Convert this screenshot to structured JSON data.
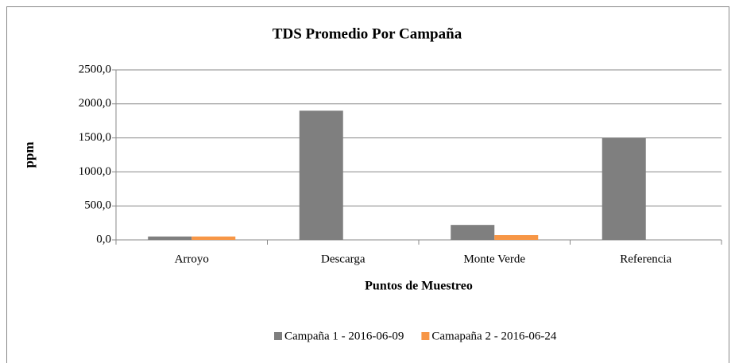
{
  "chart_data": {
    "type": "bar",
    "title": "TDS Promedio Por Campaña",
    "x_label": "Puntos de Muestreo",
    "y_label": "ppm",
    "categories": [
      "Arroyo",
      "Descarga",
      "Monte Verde",
      "Referencia"
    ],
    "series": [
      {
        "name": "Campaña 1 - 2016-06-09",
        "color": "#7f7f7f",
        "values": [
          50,
          1900,
          220,
          1500
        ]
      },
      {
        "name": "Camapaña 2 - 2016-06-24",
        "color": "#f79646",
        "values": [
          50,
          null,
          70,
          null
        ]
      }
    ],
    "ylim": [
      0,
      2500
    ],
    "yticks": [
      {
        "value": 0,
        "label": "0,0"
      },
      {
        "value": 500,
        "label": "500,0"
      },
      {
        "value": 1000,
        "label": "1000,0"
      },
      {
        "value": 1500,
        "label": "1500,0"
      },
      {
        "value": 2000,
        "label": "2000,0"
      },
      {
        "value": 2500,
        "label": "2500,0"
      }
    ],
    "grid": true,
    "legend": "bottom"
  }
}
